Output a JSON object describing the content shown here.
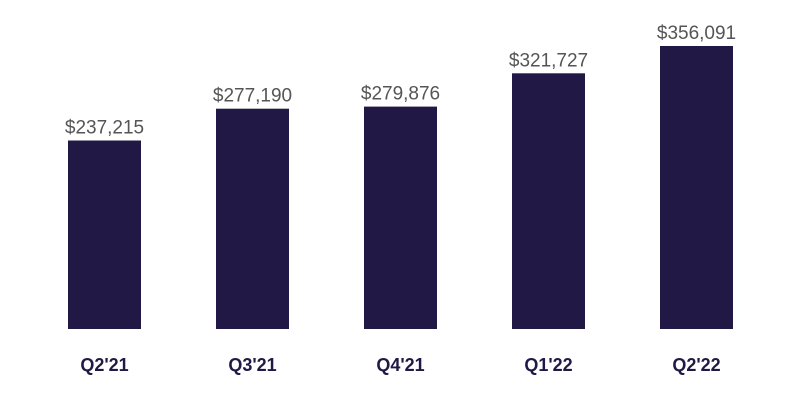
{
  "chart_data": {
    "type": "bar",
    "categories": [
      "Q2'21",
      "Q3'21",
      "Q4'21",
      "Q1'22",
      "Q2'22"
    ],
    "values": [
      237215,
      277190,
      279876,
      321727,
      356091
    ],
    "data_labels": [
      "$237,215",
      "$277,190",
      "$279,876",
      "$321,727",
      "$356,091"
    ],
    "title": "",
    "xlabel": "",
    "ylabel": "",
    "ylim": [
      0,
      356091
    ],
    "grid": false,
    "legend": "none"
  },
  "colors": {
    "bar": "#211845",
    "value_label": "#555555",
    "category_label": "#211845",
    "background": "#ffffff"
  }
}
